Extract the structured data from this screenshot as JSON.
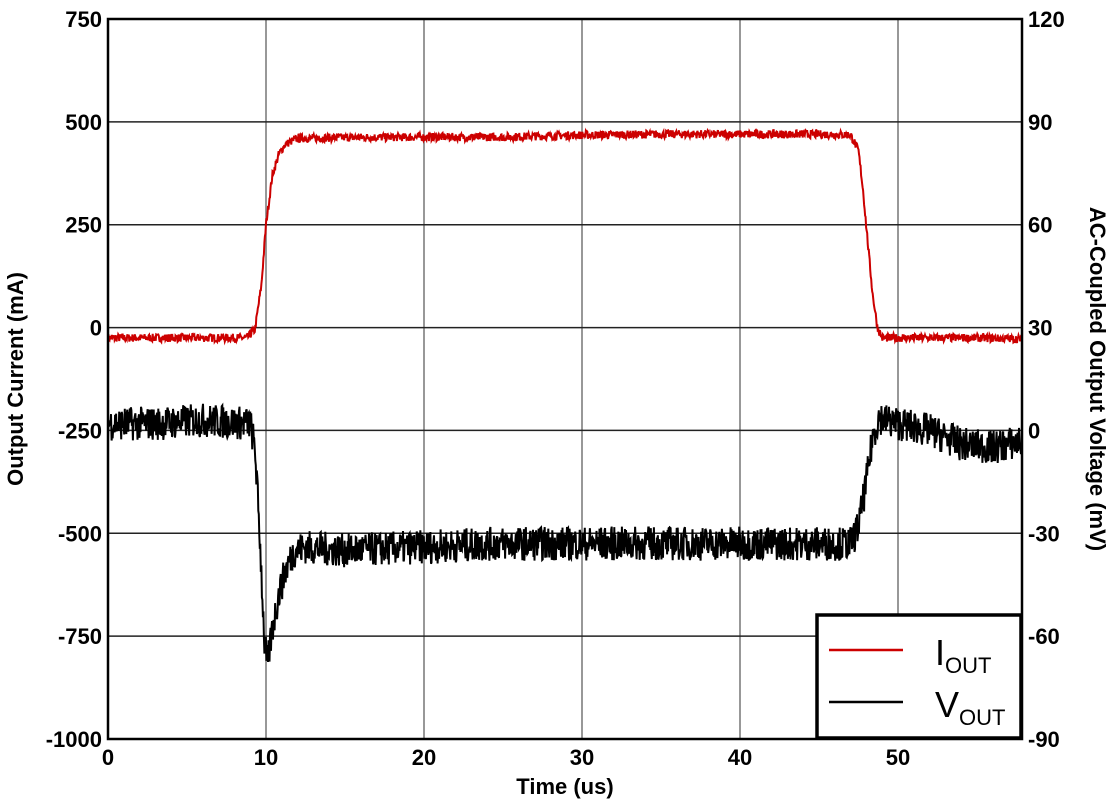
{
  "chart_data": {
    "type": "line",
    "title": "",
    "xlabel": "Time (us)",
    "ylabel": "Output Current (mA)",
    "y2label": "AC-Coupled Output Voltage (mV)",
    "xlim": [
      0,
      58
    ],
    "ylim": [
      -1000,
      750
    ],
    "y2lim": [
      -90,
      120
    ],
    "x_ticks": [
      "0",
      "10",
      "20",
      "30",
      "40",
      "50"
    ],
    "y_ticks": [
      "750",
      "500",
      "250",
      "0",
      "-250",
      "-500",
      "-750",
      "-1000"
    ],
    "y2_ticks": [
      "120",
      "90",
      "60",
      "30",
      "0",
      "-30",
      "-60",
      "-90"
    ],
    "grid": true,
    "legend_position": "lower right",
    "series": [
      {
        "name": "I_OUT",
        "axis": "left",
        "color": "#cc0000",
        "x": [
          0,
          5,
          8.8,
          9.3,
          9.7,
          10.0,
          10.4,
          10.8,
          11.2,
          12,
          15,
          20,
          25,
          30,
          35,
          40,
          45,
          47,
          47.5,
          47.8,
          48.1,
          48.4,
          48.7,
          49,
          50,
          55,
          58
        ],
        "values": [
          -25,
          -25,
          -25,
          -5,
          100,
          250,
          370,
          420,
          445,
          460,
          462,
          463,
          463,
          468,
          470,
          470,
          470,
          468,
          430,
          330,
          200,
          80,
          0,
          -25,
          -25,
          -25,
          -28
        ]
      },
      {
        "name": "V_OUT",
        "axis": "right",
        "color": "#000000",
        "x": [
          0,
          3,
          6,
          9.0,
          9.3,
          9.6,
          9.9,
          10.1,
          10.4,
          10.8,
          11.3,
          11.8,
          12.5,
          15,
          20,
          25,
          30,
          35,
          40,
          45,
          47,
          47.5,
          48,
          48.4,
          48.8,
          49.2,
          50,
          52,
          54,
          56,
          58
        ],
        "values": [
          2,
          2,
          3,
          2,
          -5,
          -30,
          -62,
          -68,
          -58,
          -48,
          -40,
          -35,
          -34,
          -35,
          -34,
          -33,
          -33,
          -33,
          -33,
          -33,
          -33,
          -28,
          -15,
          -2,
          4,
          3,
          2,
          0,
          -4,
          -5,
          -3
        ]
      }
    ]
  },
  "legend": {
    "items": [
      {
        "main": "I",
        "sub": "OUT",
        "color": "#cc0000"
      },
      {
        "main": "V",
        "sub": "OUT",
        "color": "#000000"
      }
    ]
  }
}
